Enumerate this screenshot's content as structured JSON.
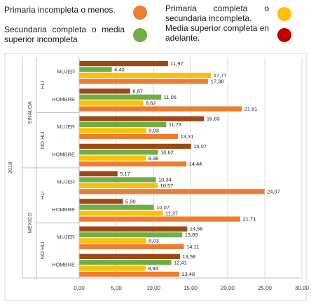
{
  "legend": {
    "items": [
      {
        "label": "Primaria incompleta o menos.",
        "color": "#ed7d31"
      },
      {
        "label": "Primaria completa o secundaria incompleta.",
        "color": "#ffc000"
      },
      {
        "label": "Secundaria completa o media superior incompleta",
        "color": "#70ad47"
      },
      {
        "label": "Media superior completa en adelante.",
        "color": "#c00000"
      }
    ]
  },
  "chart_data": {
    "type": "bar",
    "orientation": "horizontal",
    "year_label": "2018",
    "regions": [
      {
        "label": "SINALOA",
        "groups": [
          {
            "label": "HLI",
            "rows": [
              {
                "label": "MUJER",
                "values": [
                  17.38,
                  17.77,
                  4.4,
                  11.97
                ],
                "labels": [
                  "17,38",
                  "17,77",
                  "4,40",
                  "11,97"
                ]
              },
              {
                "label": "HOMBRE",
                "values": [
                  21.91,
                  8.62,
                  11.06,
                  6.87
                ],
                "labels": [
                  "21,91",
                  "8,62",
                  "11,06",
                  "6,87"
                ]
              }
            ]
          },
          {
            "label": "NO HLI",
            "rows": [
              {
                "label": "MUJER",
                "values": [
                  13.31,
                  9.03,
                  11.73,
                  16.83
                ],
                "labels": [
                  "13,31",
                  "9,03",
                  "11,73",
                  "16,83"
                ]
              },
              {
                "label": "HOMBRE",
                "values": [
                  14.44,
                  8.98,
                  10.62,
                  15.07
                ],
                "labels": [
                  "14,44",
                  "8,98",
                  "10,62",
                  "15,07"
                ]
              }
            ]
          }
        ]
      },
      {
        "label": "MÉXICO",
        "groups": [
          {
            "label": "HLI",
            "rows": [
              {
                "label": "MUJER",
                "values": [
                  24.97,
                  10.57,
                  10.34,
                  5.17
                ],
                "labels": [
                  "24,97",
                  "10,57",
                  "10,34",
                  "5,17"
                ]
              },
              {
                "label": "HOMBRE",
                "values": [
                  21.71,
                  11.27,
                  10.07,
                  5.9
                ],
                "labels": [
                  "21,71",
                  "11,27",
                  "10,07",
                  "5,90"
                ]
              }
            ]
          },
          {
            "label": "NO HLI",
            "rows": [
              {
                "label": "MUJER",
                "values": [
                  14.11,
                  9.03,
                  13.89,
                  14.56
                ],
                "labels": [
                  "14,11",
                  "9,03",
                  "13,89",
                  "14,56"
                ]
              },
              {
                "label": "HOMBRE",
                "values": [
                  13.48,
                  8.94,
                  12.41,
                  13.58
                ],
                "labels": [
                  "13,48",
                  "8,94",
                  "12,41",
                  "13,58"
                ]
              }
            ]
          }
        ]
      }
    ],
    "series_colors": [
      "#ed7d31",
      "#ffc000",
      "#70ad47",
      "#9c4a14"
    ],
    "xlim": [
      0,
      30
    ],
    "xticks": [
      0,
      5,
      10,
      15,
      20,
      25,
      30
    ],
    "xtick_labels": [
      "0,00",
      "5,00",
      "10,00",
      "15,00",
      "20,00",
      "25,00",
      "30,00"
    ],
    "grid": true
  }
}
